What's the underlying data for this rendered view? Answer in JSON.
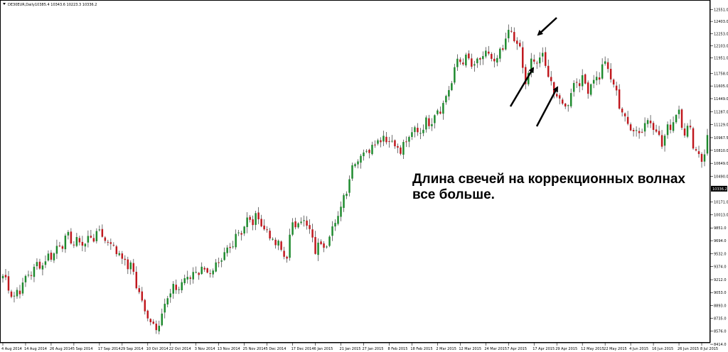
{
  "chart_data": {
    "type": "candlestick",
    "header": {
      "symbol_label": "DE30EUR,Daily",
      "ohlc_label": "10385.4 10343.6 10223.3 10336.2"
    },
    "annotation": {
      "lines": [
        "Длина свечей на коррекционных волнах",
        "все больше."
      ]
    },
    "ylim": [
      8450,
      12650
    ],
    "y_ticks": [
      {
        "value": 12551,
        "label": "12551.0"
      },
      {
        "value": 12403,
        "label": "12403.0"
      },
      {
        "value": 12253,
        "label": "12253.0"
      },
      {
        "value": 12103,
        "label": "12103.0"
      },
      {
        "value": 11951,
        "label": "11951.0"
      },
      {
        "value": 11758,
        "label": "11758.0"
      },
      {
        "value": 11605,
        "label": "11605.0"
      },
      {
        "value": 11449,
        "label": "11449.0"
      },
      {
        "value": 11287,
        "label": "11287.0"
      },
      {
        "value": 11129,
        "label": "11129.0"
      },
      {
        "value": 10967,
        "label": "10967.5"
      },
      {
        "value": 10810,
        "label": "10810.0"
      },
      {
        "value": 10649,
        "label": "10649.0"
      },
      {
        "value": 10490,
        "label": "10490.0"
      },
      {
        "value": 10171,
        "label": "10171.0"
      },
      {
        "value": 10013,
        "label": "10013.0"
      },
      {
        "value": 9851,
        "label": "9851.0"
      },
      {
        "value": 9694,
        "label": "9694.0"
      },
      {
        "value": 9532,
        "label": "9532.0"
      },
      {
        "value": 9374,
        "label": "9374.0"
      },
      {
        "value": 9212,
        "label": "9212.0"
      },
      {
        "value": 9053,
        "label": "9053.0"
      },
      {
        "value": 8893,
        "label": "8893.0"
      },
      {
        "value": 8735,
        "label": "8735.0"
      },
      {
        "value": 8576,
        "label": "8576.0"
      },
      {
        "value": 8414,
        "label": "8414.0"
      }
    ],
    "last_price": {
      "value": 10336.2,
      "label": "10336.2"
    },
    "x_ticks": [
      {
        "index": 0,
        "label": "4 Aug 2014"
      },
      {
        "index": 8,
        "label": "14 Aug 2014"
      },
      {
        "index": 17,
        "label": "26 Aug 2014"
      },
      {
        "index": 25,
        "label": "5 Sep 2014"
      },
      {
        "index": 34,
        "label": "17 Sep 2014"
      },
      {
        "index": 42,
        "label": "29 Sep 2014"
      },
      {
        "index": 51,
        "label": "10 Oct 2014"
      },
      {
        "index": 59,
        "label": "22 Oct 2014"
      },
      {
        "index": 68,
        "label": "3 Nov 2014"
      },
      {
        "index": 76,
        "label": "13 Nov 2014"
      },
      {
        "index": 85,
        "label": "25 Nov 2014"
      },
      {
        "index": 93,
        "label": "5 Dec 2014"
      },
      {
        "index": 102,
        "label": "17 Dec 2014"
      },
      {
        "index": 110,
        "label": "6 Jan 2015"
      },
      {
        "index": 119,
        "label": "21 Jan 2015"
      },
      {
        "index": 127,
        "label": "27 Jan 2015"
      },
      {
        "index": 136,
        "label": "8 Feb 2015"
      },
      {
        "index": 144,
        "label": "18 Feb 2015"
      },
      {
        "index": 153,
        "label": "2 Mar 2015"
      },
      {
        "index": 161,
        "label": "12 Mar 2015"
      },
      {
        "index": 170,
        "label": "24 Mar 2015"
      },
      {
        "index": 178,
        "label": "7 Apr 2015"
      },
      {
        "index": 187,
        "label": "17 Apr 2015"
      },
      {
        "index": 195,
        "label": "29 Apr 2015"
      },
      {
        "index": 204,
        "label": "12 May 2015"
      },
      {
        "index": 212,
        "label": "22 May 2015"
      },
      {
        "index": 221,
        "label": "4 Jun 2015"
      },
      {
        "index": 229,
        "label": "16 Jun 2015"
      },
      {
        "index": 238,
        "label": "26 Jun 2015"
      },
      {
        "index": 246,
        "label": "8 Jul 2015"
      }
    ],
    "keypoints": [
      [
        0,
        9260
      ],
      [
        4,
        9000
      ],
      [
        10,
        9320
      ],
      [
        16,
        9480
      ],
      [
        22,
        9720
      ],
      [
        28,
        9660
      ],
      [
        34,
        9800
      ],
      [
        40,
        9580
      ],
      [
        46,
        9300
      ],
      [
        50,
        8800
      ],
      [
        54,
        8620
      ],
      [
        58,
        9000
      ],
      [
        62,
        9140
      ],
      [
        66,
        9260
      ],
      [
        70,
        9360
      ],
      [
        74,
        9280
      ],
      [
        78,
        9500
      ],
      [
        82,
        9760
      ],
      [
        86,
        9920
      ],
      [
        90,
        9980
      ],
      [
        92,
        9850
      ],
      [
        96,
        9650
      ],
      [
        100,
        9500
      ],
      [
        102,
        9900
      ],
      [
        106,
        9960
      ],
      [
        110,
        9600
      ],
      [
        114,
        9700
      ],
      [
        118,
        9980
      ],
      [
        120,
        10250
      ],
      [
        124,
        10700
      ],
      [
        128,
        10800
      ],
      [
        132,
        10960
      ],
      [
        136,
        10960
      ],
      [
        140,
        10800
      ],
      [
        144,
        11020
      ],
      [
        148,
        11100
      ],
      [
        152,
        11250
      ],
      [
        156,
        11450
      ],
      [
        160,
        11900
      ],
      [
        162,
        11950
      ],
      [
        166,
        11850
      ],
      [
        170,
        12000
      ],
      [
        174,
        11900
      ],
      [
        178,
        12250
      ],
      [
        181,
        12180
      ],
      [
        184,
        11650
      ],
      [
        186,
        11880
      ],
      [
        190,
        11950
      ],
      [
        192,
        11780
      ],
      [
        194,
        11500
      ],
      [
        198,
        11350
      ],
      [
        202,
        11700
      ],
      [
        206,
        11600
      ],
      [
        210,
        11750
      ],
      [
        212,
        11900
      ],
      [
        216,
        11500
      ],
      [
        220,
        11100
      ],
      [
        224,
        11050
      ],
      [
        228,
        11200
      ],
      [
        232,
        10900
      ],
      [
        236,
        11200
      ],
      [
        238,
        11300
      ],
      [
        240,
        11050
      ],
      [
        242,
        11050
      ],
      [
        244,
        10800
      ],
      [
        246,
        10700
      ],
      [
        248,
        10950
      ]
    ],
    "candle_count": 249
  }
}
